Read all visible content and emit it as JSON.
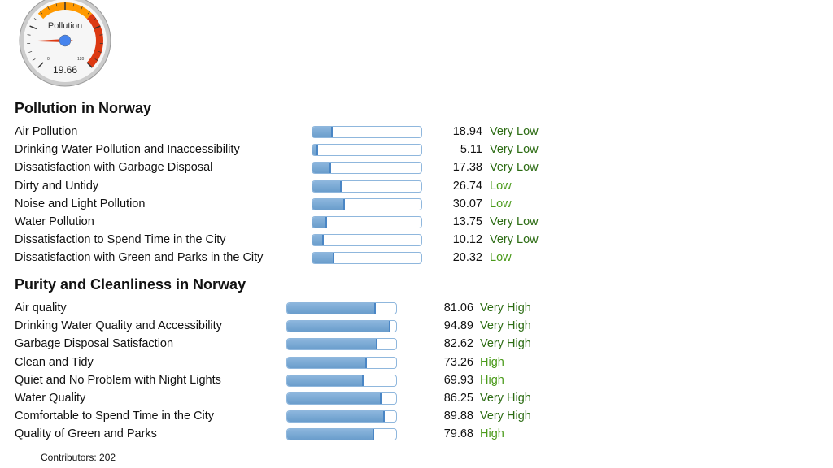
{
  "gauge": {
    "label": "Pollution",
    "value": 19.66,
    "value_text": "19.66",
    "min": 0,
    "max": 120,
    "min_label": "0",
    "max_label": "120",
    "bands": [
      {
        "from": 40,
        "to": 80,
        "color": "#ff9900"
      },
      {
        "from": 80,
        "to": 120,
        "color": "#dc3912"
      }
    ]
  },
  "pollution": {
    "title": "Pollution in Norway",
    "rows": [
      {
        "label": "Air Pollution",
        "value": 18.94,
        "value_text": "18.94",
        "rating": "Very Low"
      },
      {
        "label": "Drinking Water Pollution and Inaccessibility",
        "value": 5.11,
        "value_text": "5.11",
        "rating": "Very Low"
      },
      {
        "label": "Dissatisfaction with Garbage Disposal",
        "value": 17.38,
        "value_text": "17.38",
        "rating": "Very Low"
      },
      {
        "label": "Dirty and Untidy",
        "value": 26.74,
        "value_text": "26.74",
        "rating": "Low"
      },
      {
        "label": "Noise and Light Pollution",
        "value": 30.07,
        "value_text": "30.07",
        "rating": "Low"
      },
      {
        "label": "Water Pollution",
        "value": 13.75,
        "value_text": "13.75",
        "rating": "Very Low"
      },
      {
        "label": "Dissatisfaction to Spend Time in the City",
        "value": 10.12,
        "value_text": "10.12",
        "rating": "Very Low"
      },
      {
        "label": "Dissatisfaction with Green and Parks in the City",
        "value": 20.32,
        "value_text": "20.32",
        "rating": "Low"
      }
    ]
  },
  "purity": {
    "title": "Purity and Cleanliness in Norway",
    "rows": [
      {
        "label": "Air quality",
        "value": 81.06,
        "value_text": "81.06",
        "rating": "Very High"
      },
      {
        "label": "Drinking Water Quality and Accessibility",
        "value": 94.89,
        "value_text": "94.89",
        "rating": "Very High"
      },
      {
        "label": "Garbage Disposal Satisfaction",
        "value": 82.62,
        "value_text": "82.62",
        "rating": "Very High"
      },
      {
        "label": "Clean and Tidy",
        "value": 73.26,
        "value_text": "73.26",
        "rating": "High"
      },
      {
        "label": "Quiet and No Problem with Night Lights",
        "value": 69.93,
        "value_text": "69.93",
        "rating": "High"
      },
      {
        "label": "Water Quality",
        "value": 86.25,
        "value_text": "86.25",
        "rating": "Very High"
      },
      {
        "label": "Comfortable to Spend Time in the City",
        "value": 89.88,
        "value_text": "89.88",
        "rating": "Very High"
      },
      {
        "label": "Quality of Green and Parks",
        "value": 79.68,
        "value_text": "79.68",
        "rating": "High"
      }
    ]
  },
  "contributors": "Contributors: 202"
}
